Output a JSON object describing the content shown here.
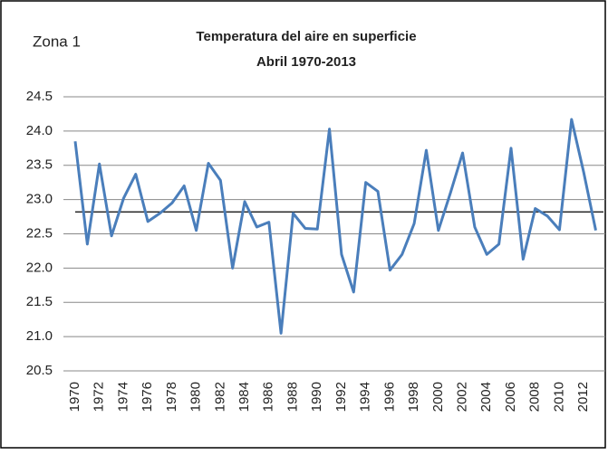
{
  "chart_data": {
    "type": "line",
    "title": "Temperatura del aire en superficie",
    "subtitle": "Abril 1970-2013",
    "annotation": "Zona 1",
    "x": [
      1970,
      1971,
      1972,
      1973,
      1974,
      1975,
      1976,
      1977,
      1978,
      1979,
      1980,
      1981,
      1982,
      1983,
      1984,
      1985,
      1986,
      1987,
      1988,
      1989,
      1990,
      1991,
      1992,
      1993,
      1994,
      1995,
      1996,
      1997,
      1998,
      1999,
      2000,
      2001,
      2002,
      2003,
      2004,
      2005,
      2006,
      2007,
      2008,
      2009,
      2010,
      2011,
      2012,
      2013
    ],
    "values": [
      23.85,
      22.35,
      23.52,
      22.47,
      23.02,
      23.37,
      22.68,
      22.8,
      22.95,
      23.2,
      22.55,
      23.53,
      23.28,
      22.0,
      22.97,
      22.6,
      22.67,
      21.05,
      22.8,
      22.58,
      22.57,
      24.03,
      22.2,
      21.65,
      23.25,
      23.12,
      21.97,
      22.2,
      22.65,
      23.72,
      22.55,
      23.1,
      23.68,
      22.6,
      22.2,
      22.35,
      23.75,
      22.13,
      22.87,
      22.76,
      22.56,
      24.17,
      23.4,
      22.55
    ],
    "color": "#4a7ebb",
    "reference_line": 22.82,
    "reference_color": "#000000",
    "xlim": [
      1970,
      2013
    ],
    "xticks": [
      1970,
      1972,
      1974,
      1976,
      1978,
      1980,
      1982,
      1984,
      1986,
      1988,
      1990,
      1992,
      1994,
      1996,
      1998,
      2000,
      2002,
      2004,
      2006,
      2008,
      2010,
      2012
    ],
    "ylim": [
      20.5,
      24.5
    ],
    "yticks": [
      20.5,
      {
        "value": 21,
        "label": "21.0"
      },
      21.5,
      {
        "value": 22,
        "label": "22.0"
      },
      22.5,
      {
        "value": 23,
        "label": "23.0"
      },
      23.5,
      {
        "value": 24,
        "label": "24.0"
      },
      24.5
    ],
    "grid": true
  }
}
